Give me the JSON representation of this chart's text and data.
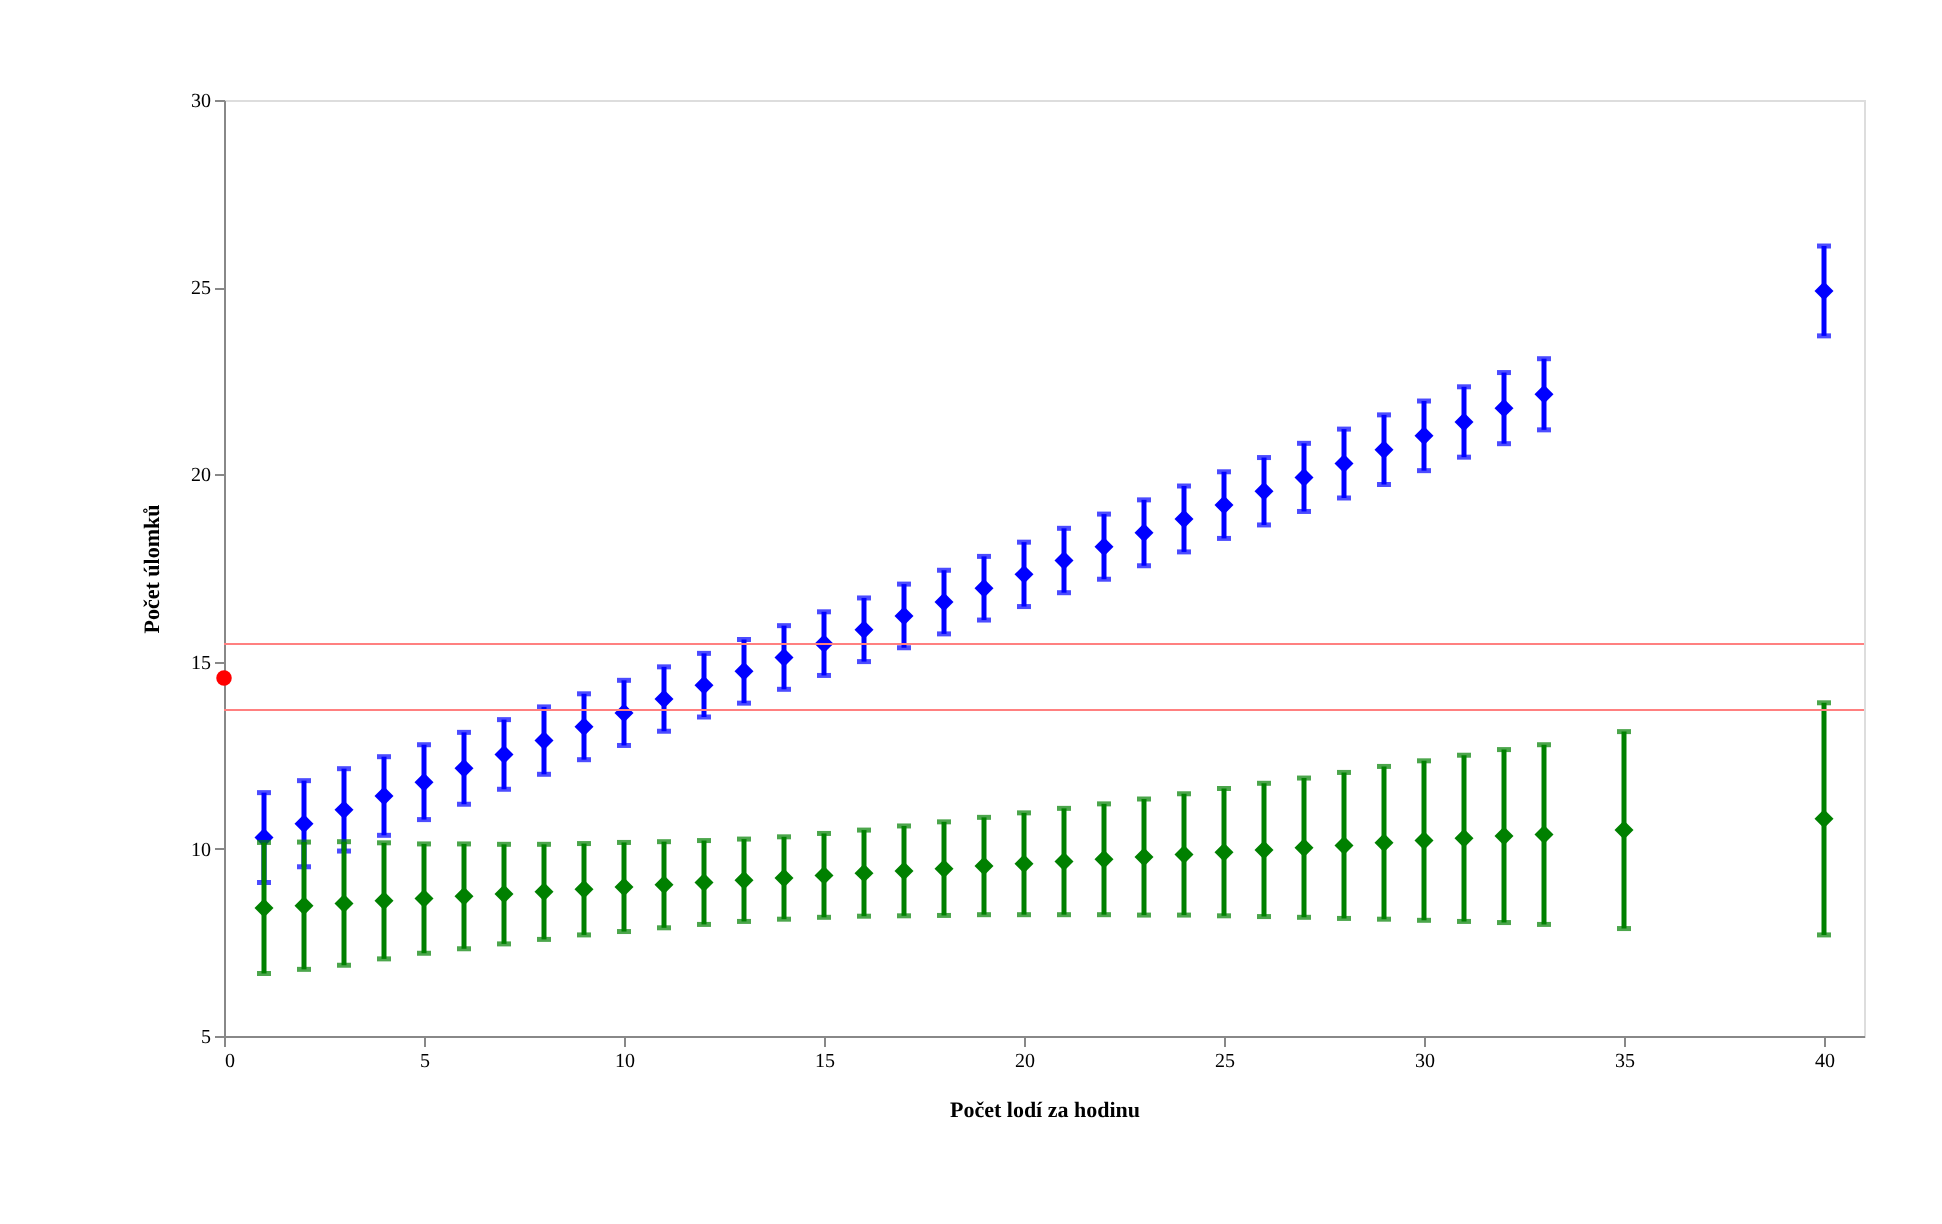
{
  "chart_data": {
    "type": "scatter",
    "xlabel": "Počet lodí za hodinu",
    "ylabel": "Počet úlomků",
    "xlim": [
      0,
      41
    ],
    "xticks": [
      0,
      5,
      10,
      15,
      20,
      25,
      30,
      35,
      40
    ],
    "ylim": [
      5,
      30
    ],
    "yticks": [
      5,
      10,
      15,
      20,
      25,
      30
    ],
    "grid": false,
    "legend": false,
    "marker": "diamond",
    "series": [
      {
        "color": "#0000ff",
        "x": [
          1,
          2,
          3,
          4,
          5,
          6,
          7,
          8,
          9,
          10,
          11,
          12,
          13,
          14,
          15,
          16,
          17,
          18,
          19,
          20,
          21,
          22,
          23,
          24,
          25,
          26,
          27,
          28,
          29,
          30,
          31,
          32,
          33,
          40
        ],
        "values": [
          10.3,
          10.67,
          11.04,
          11.41,
          11.78,
          12.15,
          12.52,
          12.89,
          13.26,
          13.63,
          14.0,
          14.37,
          14.74,
          15.11,
          15.48,
          15.85,
          16.22,
          16.59,
          16.96,
          17.33,
          17.7,
          18.07,
          18.44,
          18.81,
          19.18,
          19.55,
          19.92,
          20.29,
          20.66,
          21.03,
          21.4,
          21.77,
          22.14,
          24.9
        ],
        "errors": [
          1.2,
          1.15,
          1.1,
          1.05,
          1.0,
          0.96,
          0.93,
          0.9,
          0.88,
          0.87,
          0.86,
          0.85,
          0.85,
          0.85,
          0.85,
          0.85,
          0.85,
          0.85,
          0.85,
          0.86,
          0.86,
          0.87,
          0.88,
          0.88,
          0.89,
          0.9,
          0.91,
          0.92,
          0.93,
          0.93,
          0.94,
          0.95,
          0.95,
          1.2
        ]
      },
      {
        "color": "#008000",
        "x": [
          1,
          2,
          3,
          4,
          5,
          6,
          7,
          8,
          9,
          10,
          11,
          12,
          13,
          14,
          15,
          16,
          17,
          18,
          19,
          20,
          21,
          22,
          23,
          24,
          25,
          26,
          27,
          28,
          29,
          30,
          31,
          32,
          33,
          35,
          40
        ],
        "values": [
          8.42,
          8.48,
          8.54,
          8.61,
          8.67,
          8.73,
          8.79,
          8.85,
          8.92,
          8.98,
          9.04,
          9.1,
          9.16,
          9.22,
          9.29,
          9.35,
          9.41,
          9.47,
          9.54,
          9.6,
          9.66,
          9.72,
          9.78,
          9.85,
          9.91,
          9.97,
          10.03,
          10.09,
          10.16,
          10.22,
          10.28,
          10.34,
          10.38,
          10.5,
          10.8
        ],
        "errors": [
          1.75,
          1.7,
          1.65,
          1.55,
          1.46,
          1.4,
          1.33,
          1.27,
          1.22,
          1.19,
          1.15,
          1.12,
          1.1,
          1.1,
          1.12,
          1.15,
          1.2,
          1.25,
          1.3,
          1.36,
          1.42,
          1.48,
          1.55,
          1.62,
          1.7,
          1.78,
          1.86,
          1.95,
          2.04,
          2.13,
          2.22,
          2.31,
          2.4,
          2.63,
          3.1
        ]
      },
      {
        "color": "#ff0000",
        "marker": "circle",
        "x": [
          0
        ],
        "values": [
          14.56
        ]
      }
    ],
    "ref_lines": [
      {
        "axis": "y",
        "value": 15.47,
        "color": "#ff8080"
      },
      {
        "axis": "y",
        "value": 13.71,
        "color": "#ff8080"
      }
    ]
  }
}
